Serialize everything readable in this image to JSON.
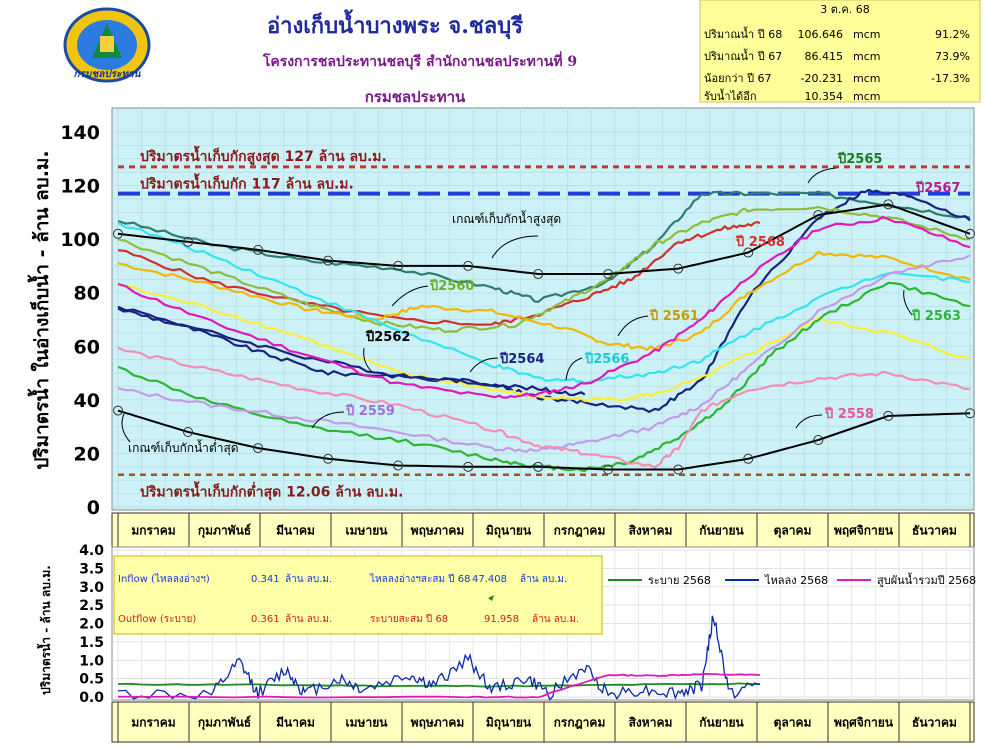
{
  "header": {
    "title": "อ่างเก็บน้ำบางพระ จ.ชลบุรี",
    "subtitle": "โครงการชลประทานชลบุรี สำนักงานชลประทานที่ 9",
    "department": "กรมชลประทาน",
    "logo_text": "กรมชลประทาน"
  },
  "summary": {
    "date": "3 ต.ค. 68",
    "rows": [
      {
        "label": "ปริมาณน้ำ ปี  68",
        "value": "106.646",
        "unit": "mcm",
        "pct": "91.2%"
      },
      {
        "label": "ปริมาณน้ำ ปี  67",
        "value": "86.415",
        "unit": "mcm",
        "pct": "73.9%"
      },
      {
        "label": "น้อยกว่า ปี  67",
        "value": "-20.231",
        "unit": "mcm",
        "pct": "-17.3%"
      },
      {
        "label": "รับน้ำได้อีก",
        "value": "10.354",
        "unit": "mcm",
        "pct": ""
      }
    ]
  },
  "months": [
    "มกราคม",
    "กุมภาพันธ์",
    "มีนาคม",
    "เมษายน",
    "พฤษภาคม",
    "มิถุนายน",
    "กรกฎาคม",
    "สิงหาคม",
    "กันยายน",
    "ตุลาคม",
    "พฤศจิกายน",
    "ธันวาคม"
  ],
  "months_bottom": [
    "มกราคม",
    "กุมภาพันธ์",
    "มีนาคม",
    "เมษายน",
    "พฤษภาคม",
    "มิถุนายน",
    "กรกฎาคม",
    "สิงหาคม",
    "กันยายน",
    "ตุลาคม",
    "พฤศจิกายน",
    "ธันวาคม"
  ],
  "chart_data": [
    {
      "type": "line",
      "ylabel": "ปริมาตรน้ำ ในอ่างเก็บน้ำ - ล้าน ลบ.ม.",
      "ylim": [
        0,
        140
      ],
      "yticks": [
        0,
        20,
        40,
        60,
        80,
        100,
        120,
        140
      ],
      "xlim": [
        0,
        365
      ],
      "grid": true,
      "reference_lines": [
        {
          "label": "ปริมาตรน้ำเก็บกักสูงสุด 127 ล้าน ลบ.ม.",
          "value": 127,
          "color": "#c0392b"
        },
        {
          "label": "ปริมาตรน้ำเก็บกัก  117 ล้าน ลบ.ม.",
          "value": 117,
          "color": "#1f3fd8"
        },
        {
          "label": "ปริมาตรน้ำเก็บกักต่ำสุด  12.06 ล้าน ลบ.ม.",
          "value": 12.06,
          "color": "#a0522d"
        }
      ],
      "rule_curves": [
        {
          "label": "เกณฑ์เก็บกักน้ำสูงสุด",
          "color": "#000000",
          "x": [
            0,
            30,
            60,
            90,
            120,
            150,
            180,
            210,
            240,
            270,
            300,
            330,
            365
          ],
          "y": [
            102,
            99,
            96,
            92,
            90,
            90,
            87,
            87,
            89,
            95,
            109,
            113,
            102
          ]
        },
        {
          "label": "เกณฑ์เก็บกักน้ำต่ำสุด",
          "color": "#000000",
          "x": [
            0,
            30,
            60,
            90,
            120,
            150,
            180,
            210,
            240,
            270,
            300,
            330,
            365
          ],
          "y": [
            36,
            28,
            22,
            18,
            15.5,
            15,
            15,
            14,
            14,
            18,
            25,
            34,
            35
          ]
        }
      ],
      "series": [
        {
          "name": "ปี2565",
          "color": "#2e7d6e",
          "x": [
            0,
            40,
            80,
            120,
            160,
            180,
            210,
            230,
            250,
            270,
            300,
            330,
            365
          ],
          "y": [
            107,
            98,
            92,
            89,
            82,
            77,
            84,
            98,
            117,
            117,
            117,
            113,
            108
          ]
        },
        {
          "name": "ปี2567",
          "color": "#1a237e",
          "x": [
            0,
            40,
            80,
            120,
            160,
            180,
            200,
            230,
            250,
            270,
            300,
            320,
            340,
            365
          ],
          "y": [
            75,
            65,
            56,
            49,
            46,
            41,
            39,
            36,
            47,
            78,
            108,
            118,
            116,
            107
          ]
        },
        {
          "name": "ปี 2568",
          "color": "#d32f2f",
          "x": [
            0,
            40,
            80,
            120,
            160,
            180,
            200,
            220,
            240,
            260,
            275
          ],
          "y": [
            96,
            84,
            76,
            70,
            68,
            72,
            78,
            85,
            99,
            104,
            106
          ]
        },
        {
          "name": "ปี2560",
          "color": "#8fbc3a",
          "x": [
            0,
            40,
            80,
            110,
            140,
            170,
            190,
            210,
            230,
            250,
            270,
            300,
            330,
            365
          ],
          "y": [
            100,
            88,
            76,
            69,
            66,
            68,
            76,
            85,
            98,
            106,
            111,
            112,
            108,
            100
          ]
        },
        {
          "name": "ปี 2561",
          "color": "#f2b705",
          "x": [
            0,
            40,
            80,
            110,
            130,
            160,
            190,
            210,
            230,
            250,
            270,
            300,
            330,
            365
          ],
          "y": [
            91,
            83,
            74,
            70,
            75,
            73,
            67,
            61,
            59,
            65,
            80,
            95,
            93,
            85
          ]
        },
        {
          "name": "ปี2562",
          "color": "#ffee33",
          "x": [
            0,
            40,
            80,
            120,
            160,
            180,
            210,
            230,
            250,
            270,
            300,
            330,
            365
          ],
          "y": [
            83,
            74,
            63,
            50,
            44,
            41,
            40,
            42,
            48,
            57,
            70,
            65,
            55
          ]
        },
        {
          "name": "ปี2564",
          "color": "#1a237e",
          "x": [
            0,
            30,
            60,
            90,
            120,
            150,
            180,
            200
          ],
          "y": [
            74,
            67,
            58,
            50,
            49,
            47,
            44,
            42
          ]
        },
        {
          "name": "ปี2566",
          "color": "#33e5f0",
          "x": [
            0,
            40,
            80,
            120,
            160,
            180,
            200,
            230,
            250,
            270,
            300,
            330,
            365
          ],
          "y": [
            106,
            94,
            80,
            66,
            53,
            48,
            47,
            50,
            55,
            65,
            78,
            88,
            84
          ]
        },
        {
          "name": "สูบผันน้ำรวมปี 2568",
          "color": "#e01ab8",
          "x": [
            0,
            40,
            80,
            120,
            160,
            180,
            200,
            230,
            250,
            270,
            300,
            330,
            365
          ],
          "y": [
            83,
            69,
            57,
            46,
            41,
            42,
            46,
            58,
            70,
            86,
            104,
            108,
            97
          ]
        },
        {
          "name": "ปี 2563",
          "color": "#2db533",
          "x": [
            0,
            40,
            80,
            120,
            160,
            180,
            200,
            220,
            240,
            260,
            280,
            300,
            330,
            365
          ],
          "y": [
            52,
            39,
            30,
            25,
            18,
            15,
            14,
            17,
            26,
            38,
            57,
            70,
            84,
            75
          ]
        },
        {
          "name": "ปี 2559",
          "color": "#c39be6",
          "x": [
            0,
            40,
            80,
            120,
            160,
            180,
            200,
            230,
            250,
            270,
            300,
            330,
            365
          ],
          "y": [
            44,
            38,
            33,
            28,
            22,
            21,
            24,
            30,
            38,
            52,
            73,
            87,
            94
          ]
        },
        {
          "name": "ปี 2558",
          "color": "#f48fb1",
          "x": [
            0,
            40,
            80,
            120,
            160,
            180,
            200,
            230,
            240,
            250,
            270,
            300,
            330,
            365
          ],
          "y": [
            59,
            51,
            44,
            38,
            29,
            23,
            20,
            15,
            22,
            36,
            44,
            48,
            50,
            44
          ]
        }
      ]
    },
    {
      "type": "line",
      "ylabel": "ปริมาตรน้ำ - ล้าน ลบ.ม.",
      "ylim": [
        0,
        4
      ],
      "yticks": [
        0.0,
        0.5,
        1.0,
        1.5,
        2.0,
        2.5,
        3.0,
        3.5,
        4.0
      ],
      "xlim": [
        0,
        365
      ],
      "series": [
        {
          "name": "ระบาย 2568",
          "color": "#1e8a1e",
          "x": [
            0,
            60,
            120,
            180,
            240,
            275
          ],
          "y": [
            0.35,
            0.33,
            0.3,
            0.3,
            0.35,
            0.36
          ]
        },
        {
          "name": "ไหลลง 2568",
          "color": "#0a2aa8",
          "x": [
            0,
            40,
            52,
            60,
            72,
            80,
            95,
            105,
            125,
            135,
            150,
            160,
            175,
            185,
            200,
            210,
            225,
            240,
            250,
            255,
            262,
            275
          ],
          "y": [
            0.1,
            0.05,
            0.95,
            0.1,
            0.75,
            0.1,
            0.5,
            0.2,
            0.6,
            0.3,
            1.05,
            0.2,
            0.5,
            0.1,
            0.8,
            0.1,
            0.2,
            0.1,
            0.3,
            2.2,
            0.1,
            0.34
          ]
        },
        {
          "name": "สูบผันน้ำรวมปี 2568",
          "color": "#e01ab8",
          "x": [
            0,
            150,
            180,
            210,
            230,
            250,
            275
          ],
          "y": [
            0,
            0,
            0,
            0.6,
            0.58,
            0.62,
            0.6
          ]
        }
      ],
      "info": {
        "inflow_label": "Inflow (ไหลลงอ่างฯ)",
        "inflow_value": "0.341",
        "inflow_unit": "ล้าน ลบ.ม.",
        "inflow_cum_label": "ไหลลงอ่างฯสะสม ปี 68",
        "inflow_cum_value": "47.408",
        "inflow_cum_unit": "ล้าน ลบ.ม.",
        "outflow_label": "Outflow (ระบาย)",
        "outflow_value": "0.361",
        "outflow_unit": "ล้าน ลบ.ม.",
        "outflow_cum_label": "ระบายสะสม ปี 68",
        "outflow_cum_value": "91.958",
        "outflow_cum_unit": "ล้าน ลบ.ม."
      }
    }
  ],
  "colors": {
    "plot_bg": "#ccf2f7",
    "month_bar_bg": "#ffffbf",
    "summary_bg": "#ffff99",
    "info_bg": "#ffffa8"
  }
}
